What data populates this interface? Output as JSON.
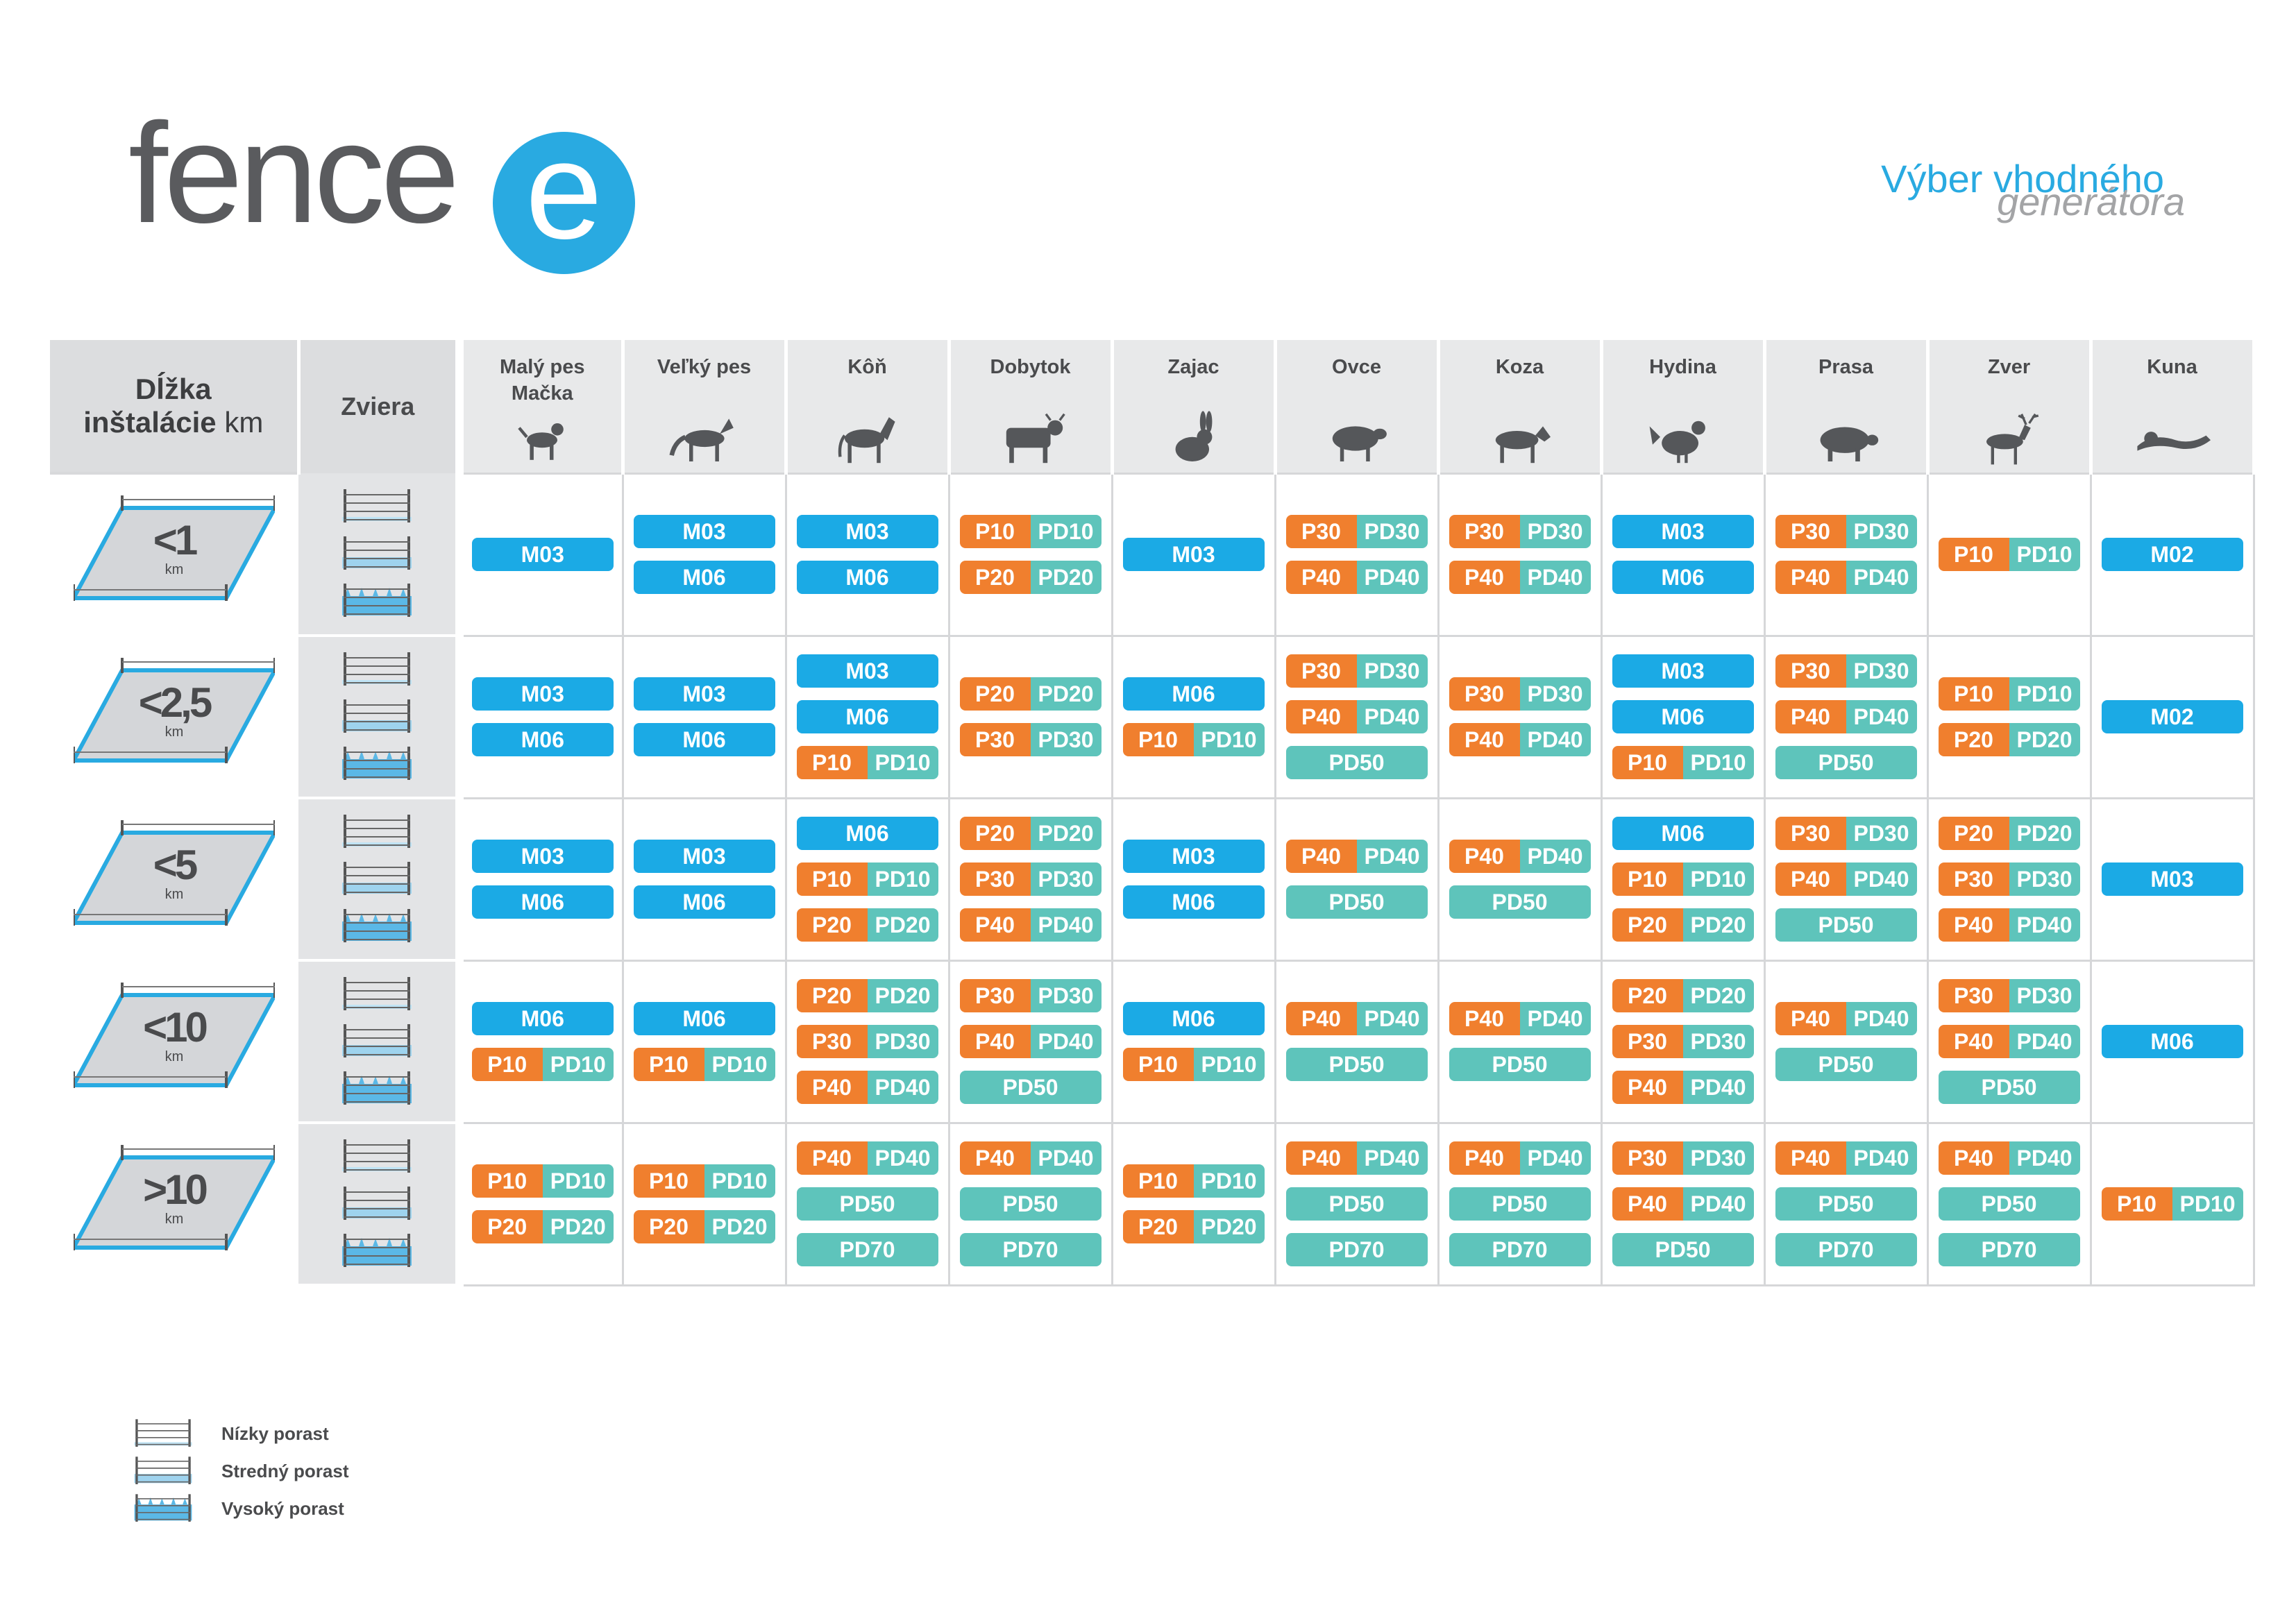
{
  "brand": {
    "logo_text": "fence",
    "logo_e": "e"
  },
  "tagline": {
    "line1": "Výber vhodného",
    "line2": "generátora"
  },
  "header": {
    "length_line1": "Dĺžka",
    "length_line2": "inštalácie",
    "length_unit": "km",
    "animal_col": "Zviera",
    "animals": [
      {
        "line1": "Malý pes",
        "line2": "Mačka",
        "icon": "dog-small-icon"
      },
      {
        "line1": "Veľký pes",
        "line2": "",
        "icon": "dog-large-icon"
      },
      {
        "line1": "Kôň",
        "line2": "",
        "icon": "horse-icon"
      },
      {
        "line1": "Dobytok",
        "line2": "",
        "icon": "cattle-icon"
      },
      {
        "line1": "Zajac",
        "line2": "",
        "icon": "rabbit-icon"
      },
      {
        "line1": "Ovce",
        "line2": "",
        "icon": "sheep-icon"
      },
      {
        "line1": "Koza",
        "line2": "",
        "icon": "goat-icon"
      },
      {
        "line1": "Hydina",
        "line2": "",
        "icon": "poultry-icon"
      },
      {
        "line1": "Prasa",
        "line2": "",
        "icon": "pig-icon"
      },
      {
        "line1": "Zver",
        "line2": "",
        "icon": "deer-icon"
      },
      {
        "line1": "Kuna",
        "line2": "",
        "icon": "marten-icon"
      }
    ]
  },
  "rows": [
    {
      "label": "<1",
      "unit": "km",
      "cells": [
        [
          [
            "M03"
          ]
        ],
        [
          [
            "M03"
          ],
          [
            "M06"
          ]
        ],
        [
          [
            "M03"
          ],
          [
            "M06"
          ]
        ],
        [
          [
            "P10",
            "PD10"
          ],
          [
            "P20",
            "PD20"
          ]
        ],
        [
          [
            "M03"
          ]
        ],
        [
          [
            "P30",
            "PD30"
          ],
          [
            "P40",
            "PD40"
          ]
        ],
        [
          [
            "P30",
            "PD30"
          ],
          [
            "P40",
            "PD40"
          ]
        ],
        [
          [
            "M03"
          ],
          [
            "M06"
          ]
        ],
        [
          [
            "P30",
            "PD30"
          ],
          [
            "P40",
            "PD40"
          ]
        ],
        [
          [
            "P10",
            "PD10"
          ]
        ],
        [
          [
            "M02"
          ]
        ]
      ]
    },
    {
      "label": "<2,5",
      "unit": "km",
      "cells": [
        [
          [
            "M03"
          ],
          [
            "M06"
          ]
        ],
        [
          [
            "M03"
          ],
          [
            "M06"
          ]
        ],
        [
          [
            "M03"
          ],
          [
            "M06"
          ],
          [
            "P10",
            "PD10"
          ]
        ],
        [
          [
            "P20",
            "PD20"
          ],
          [
            "P30",
            "PD30"
          ]
        ],
        [
          [
            "M06"
          ],
          [
            "P10",
            "PD10"
          ]
        ],
        [
          [
            "P30",
            "PD30"
          ],
          [
            "P40",
            "PD40"
          ],
          [
            "PD50"
          ]
        ],
        [
          [
            "P30",
            "PD30"
          ],
          [
            "P40",
            "PD40"
          ]
        ],
        [
          [
            "M03"
          ],
          [
            "M06"
          ],
          [
            "P10",
            "PD10"
          ]
        ],
        [
          [
            "P30",
            "PD30"
          ],
          [
            "P40",
            "PD40"
          ],
          [
            "PD50"
          ]
        ],
        [
          [
            "P10",
            "PD10"
          ],
          [
            "P20",
            "PD20"
          ]
        ],
        [
          [
            "M02"
          ]
        ]
      ]
    },
    {
      "label": "<5",
      "unit": "km",
      "cells": [
        [
          [
            "M03"
          ],
          [
            "M06"
          ]
        ],
        [
          [
            "M03"
          ],
          [
            "M06"
          ]
        ],
        [
          [
            "M06"
          ],
          [
            "P10",
            "PD10"
          ],
          [
            "P20",
            "PD20"
          ]
        ],
        [
          [
            "P20",
            "PD20"
          ],
          [
            "P30",
            "PD30"
          ],
          [
            "P40",
            "PD40"
          ]
        ],
        [
          [
            "M03"
          ],
          [
            "M06"
          ]
        ],
        [
          [
            "P40",
            "PD40"
          ],
          [
            "PD50"
          ]
        ],
        [
          [
            "P40",
            "PD40"
          ],
          [
            "PD50"
          ]
        ],
        [
          [
            "M06"
          ],
          [
            "P10",
            "PD10"
          ],
          [
            "P20",
            "PD20"
          ]
        ],
        [
          [
            "P30",
            "PD30"
          ],
          [
            "P40",
            "PD40"
          ],
          [
            "PD50"
          ]
        ],
        [
          [
            "P20",
            "PD20"
          ],
          [
            "P30",
            "PD30"
          ],
          [
            "P40",
            "PD40"
          ]
        ],
        [
          [
            "M03"
          ]
        ]
      ]
    },
    {
      "label": "<10",
      "unit": "km",
      "cells": [
        [
          [
            "M06"
          ],
          [
            "P10",
            "PD10"
          ]
        ],
        [
          [
            "M06"
          ],
          [
            "P10",
            "PD10"
          ]
        ],
        [
          [
            "P20",
            "PD20"
          ],
          [
            "P30",
            "PD30"
          ],
          [
            "P40",
            "PD40"
          ]
        ],
        [
          [
            "P30",
            "PD30"
          ],
          [
            "P40",
            "PD40"
          ],
          [
            "PD50"
          ]
        ],
        [
          [
            "M06"
          ],
          [
            "P10",
            "PD10"
          ]
        ],
        [
          [
            "P40",
            "PD40"
          ],
          [
            "PD50"
          ]
        ],
        [
          [
            "P40",
            "PD40"
          ],
          [
            "PD50"
          ]
        ],
        [
          [
            "P20",
            "PD20"
          ],
          [
            "P30",
            "PD30"
          ],
          [
            "P40",
            "PD40"
          ]
        ],
        [
          [
            "P40",
            "PD40"
          ],
          [
            "PD50"
          ]
        ],
        [
          [
            "P30",
            "PD30"
          ],
          [
            "P40",
            "PD40"
          ],
          [
            "PD50"
          ]
        ],
        [
          [
            "M06"
          ]
        ]
      ]
    },
    {
      "label": ">10",
      "unit": "km",
      "cells": [
        [
          [
            "P10",
            "PD10"
          ],
          [
            "P20",
            "PD20"
          ]
        ],
        [
          [
            "P10",
            "PD10"
          ],
          [
            "P20",
            "PD20"
          ]
        ],
        [
          [
            "P40",
            "PD40"
          ],
          [
            "PD50"
          ],
          [
            "PD70"
          ]
        ],
        [
          [
            "P40",
            "PD40"
          ],
          [
            "PD50"
          ],
          [
            "PD70"
          ]
        ],
        [
          [
            "P10",
            "PD10"
          ],
          [
            "P20",
            "PD20"
          ]
        ],
        [
          [
            "P40",
            "PD40"
          ],
          [
            "PD50"
          ],
          [
            "PD70"
          ]
        ],
        [
          [
            "P40",
            "PD40"
          ],
          [
            "PD50"
          ],
          [
            "PD70"
          ]
        ],
        [
          [
            "P30",
            "PD30"
          ],
          [
            "P40",
            "PD40"
          ],
          [
            "PD50"
          ]
        ],
        [
          [
            "P40",
            "PD40"
          ],
          [
            "PD50"
          ],
          [
            "PD70"
          ]
        ],
        [
          [
            "P40",
            "PD40"
          ],
          [
            "PD50"
          ],
          [
            "PD70"
          ]
        ],
        [
          [
            "P10",
            "PD10"
          ]
        ]
      ]
    }
  ],
  "legend": [
    {
      "label": "Nízky porast",
      "icon": "low-vegetation-icon"
    },
    {
      "label": "Stredný  porast",
      "icon": "medium-vegetation-icon"
    },
    {
      "label": "Vysoký porast",
      "icon": "high-vegetation-icon"
    }
  ],
  "colors": {
    "m_series": "#1baae5",
    "p_series": "#f07f2e",
    "pd_series": "#5ec4bb",
    "brand_blue": "#29aae1"
  }
}
